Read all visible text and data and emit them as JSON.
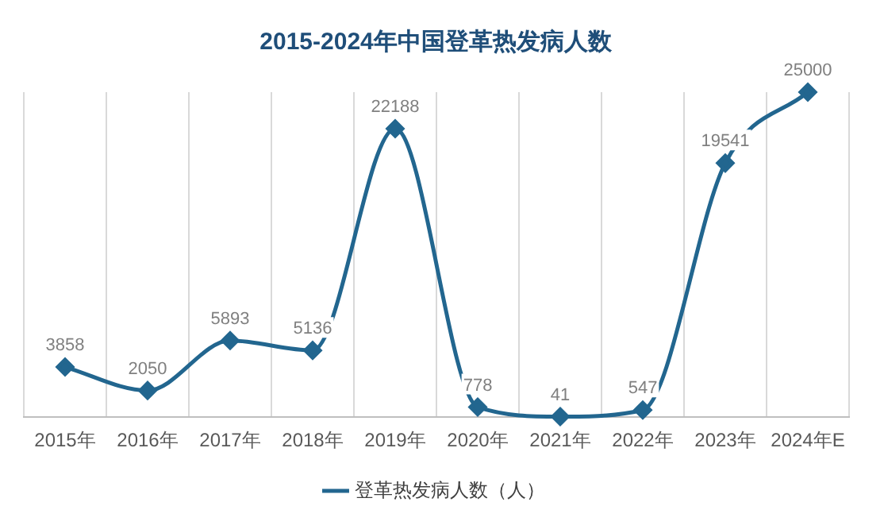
{
  "chart_data": {
    "type": "line",
    "title": "2015-2024年中国登革热发病人数",
    "categories": [
      "2015年",
      "2016年",
      "2017年",
      "2018年",
      "2019年",
      "2020年",
      "2021年",
      "2022年",
      "2023年",
      "2024年E"
    ],
    "series": [
      {
        "name": "登革热发病人数（人）",
        "color": "#22668f",
        "values": [
          3858,
          2050,
          5893,
          5136,
          22188,
          778,
          41,
          547,
          19541,
          25000
        ]
      }
    ],
    "data_labels": true,
    "grid": "x",
    "legend": "bottom",
    "marker": "diamond",
    "line_style": "solid"
  }
}
